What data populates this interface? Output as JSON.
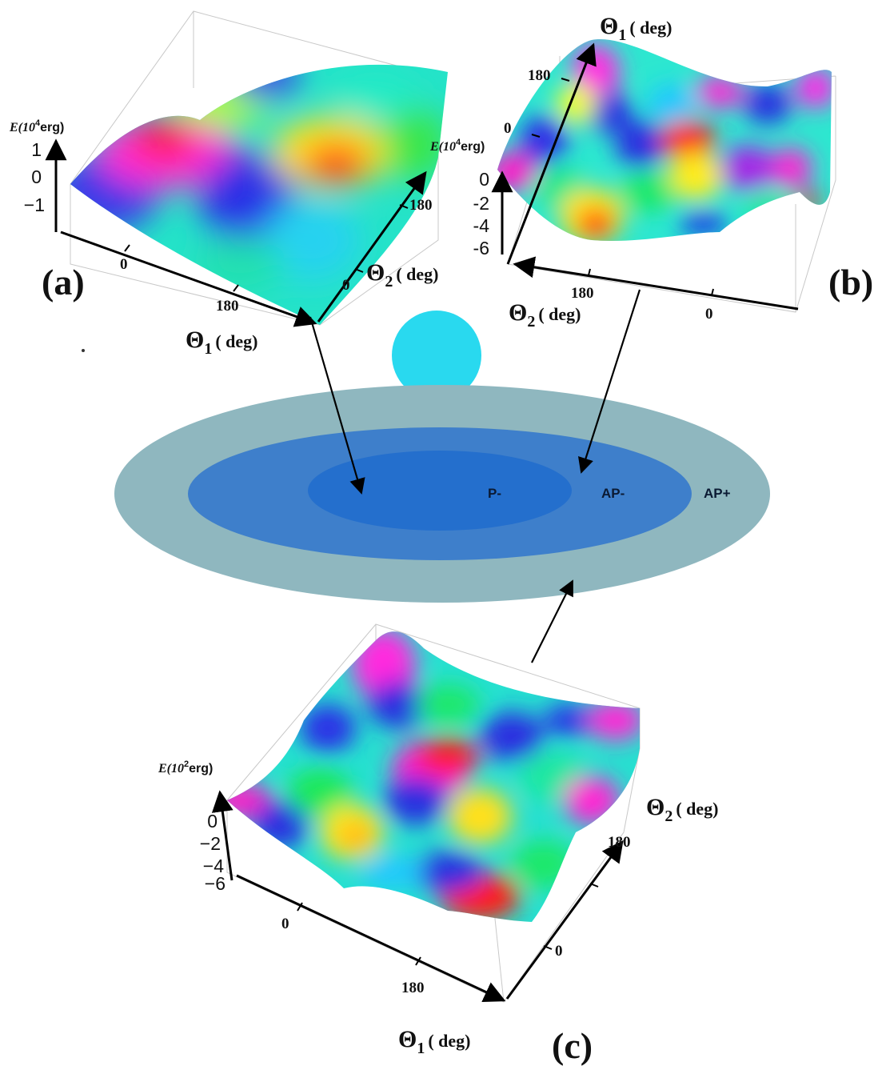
{
  "colors": {
    "outer_ring": "#8fb7bf",
    "middle_ring": "#3e7fcb",
    "inner_ring": "#246fcd",
    "ball": "#29d9ef",
    "surface_scale": [
      "#ff0000",
      "#ffff00",
      "#00ff00",
      "#00ffff",
      "#0000ff",
      "#ff00ff"
    ]
  },
  "regions": {
    "inner": "P-",
    "middle": "AP-",
    "outer": "AP+"
  },
  "panels": {
    "a": {
      "tag": "(a)",
      "z_label": {
        "prefix": "E(10",
        "exp": "4",
        "suffix": "erg)"
      },
      "z_ticks": [
        "1",
        "0",
        "−1"
      ],
      "theta1_ticks": [
        "0",
        "180"
      ],
      "theta2_ticks": [
        "0",
        "180"
      ],
      "theta1_label": {
        "sym": "Θ",
        "sub": "1",
        "unit": "( deg)"
      },
      "theta2_label": {
        "sym": "Θ",
        "sub": "2",
        "unit": "( deg)"
      }
    },
    "b": {
      "tag": "(b)",
      "z_label": {
        "prefix": "E(10",
        "exp": "4",
        "suffix": "erg)"
      },
      "z_ticks": [
        "0",
        "-2",
        "-4",
        "-6"
      ],
      "theta1_ticks": [
        "180",
        "0"
      ],
      "theta2_ticks": [
        "180",
        "0"
      ],
      "theta1_label": {
        "sym": "Θ",
        "sub": "1",
        "unit": "( deg)"
      },
      "theta2_label": {
        "sym": "Θ",
        "sub": "2",
        "unit": "( deg)"
      }
    },
    "c": {
      "tag": "(c)",
      "z_label": {
        "prefix": "E(10",
        "exp": "2",
        "suffix": "erg)"
      },
      "z_ticks": [
        "0",
        "−2",
        "−4",
        "−6"
      ],
      "theta1_ticks": [
        "0",
        "180"
      ],
      "theta2_ticks": [
        "180",
        "0"
      ],
      "theta1_label": {
        "sym": "Θ",
        "sub": "1",
        "unit": "( deg)"
      },
      "theta2_label": {
        "sym": "Θ",
        "sub": "2",
        "unit": "( deg)"
      }
    }
  }
}
